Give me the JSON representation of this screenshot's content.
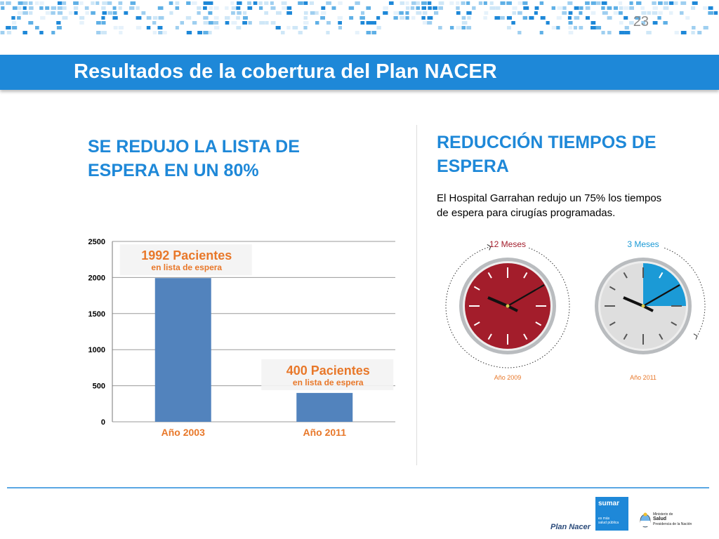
{
  "page_number": "23",
  "title": "Resultados de la cobertura del Plan NACER",
  "left_heading": [
    "SE REDUJO LA LISTA DE",
    "ESPERA EN UN 80%"
  ],
  "right_heading": [
    "REDUCCIÓN TIEMPOS DE",
    "ESPERA"
  ],
  "right_body": [
    "El Hospital Garrahan redujo un 75% los tiempos",
    "de espera para cirugías programadas."
  ],
  "colors": {
    "accent": "#1e88d8",
    "bar": "#5283bd",
    "orange": "#e8782a",
    "red_clock": "#a31d2b",
    "blue_clock": "#1b9ad6"
  },
  "chart_data": [
    {
      "type": "bar",
      "categories": [
        "Año 2003",
        "Año 2011"
      ],
      "values": [
        1992,
        400
      ],
      "ylim": [
        0,
        2500
      ],
      "yticks": [
        "0",
        "500",
        "1000",
        "1500",
        "2000",
        "2500"
      ],
      "grid": true,
      "annotations": [
        {
          "big": "1992 Pacientes",
          "small": "en lista de espera"
        },
        {
          "big": "400 Pacientes",
          "small": "en lista de espera"
        }
      ]
    },
    {
      "type": "clock",
      "clocks": [
        {
          "top_label": "12 Meses",
          "bottom_label": "Año 2009",
          "months": 12
        },
        {
          "top_label": "3 Meses",
          "bottom_label": "Año 2011",
          "months": 3
        }
      ]
    }
  ],
  "footer": {
    "plan_nacer": "Plan Nacer",
    "sumar": "sumar",
    "sumar_sub": [
      "es más",
      "salud pública"
    ],
    "ministry": [
      "Ministerio de",
      "Salud",
      "Presidencia de la Nación"
    ]
  }
}
